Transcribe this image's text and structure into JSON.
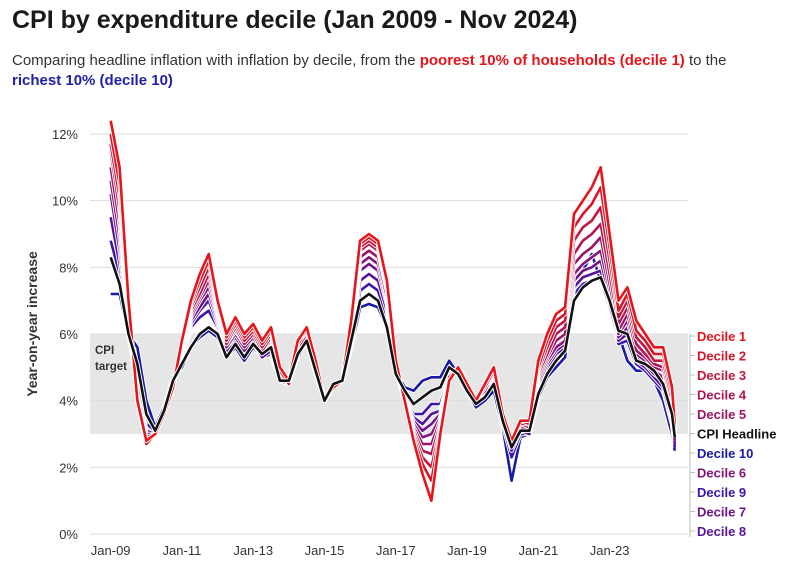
{
  "header": {
    "title": "CPI by expenditure decile (Jan 2009 - Nov 2024)",
    "subtitle_a": "Comparing headline inflation with inflation by decile, from the ",
    "subtitle_poor": "poorest 10% of households (decile 1)",
    "subtitle_b": " to the ",
    "subtitle_rich": "richest 10% (decile 10)"
  },
  "chart_data": {
    "type": "line",
    "ylabel": "Year-on-year increase",
    "ylim": [
      0,
      12.6
    ],
    "y_ticks": [
      0,
      2,
      4,
      6,
      8,
      10,
      12
    ],
    "y_tick_labels": [
      "0%",
      "2%",
      "4%",
      "6%",
      "8%",
      "10%",
      "12%"
    ],
    "x_ticks": [
      2009.0,
      2011.0,
      2013.0,
      2015.0,
      2017.0,
      2019.0,
      2021.0,
      2023.0
    ],
    "x_tick_labels": [
      "Jan-09",
      "Jan-11",
      "Jan-13",
      "Jan-15",
      "Jan-17",
      "Jan-19",
      "Jan-21",
      "Jan-23"
    ],
    "xlim": [
      2008.42,
      2025.2
    ],
    "target_band": {
      "label_line1": "CPI",
      "label_line2": "target",
      "low": 3,
      "high": 6
    },
    "grid": "horizontal",
    "legend": "right",
    "x": [
      2009.0,
      2009.25,
      2009.5,
      2009.75,
      2010.0,
      2010.25,
      2010.5,
      2010.75,
      2011.0,
      2011.25,
      2011.5,
      2011.75,
      2012.0,
      2012.25,
      2012.5,
      2012.75,
      2013.0,
      2013.25,
      2013.5,
      2013.75,
      2014.0,
      2014.25,
      2014.5,
      2014.75,
      2015.0,
      2015.25,
      2015.5,
      2015.75,
      2016.0,
      2016.25,
      2016.5,
      2016.75,
      2017.0,
      2017.25,
      2017.5,
      2017.75,
      2018.0,
      2018.25,
      2018.5,
      2018.75,
      2019.0,
      2019.25,
      2019.5,
      2019.75,
      2020.0,
      2020.25,
      2020.5,
      2020.75,
      2021.0,
      2021.25,
      2021.5,
      2021.75,
      2022.0,
      2022.25,
      2022.5,
      2022.75,
      2023.0,
      2023.25,
      2023.5,
      2023.75,
      2024.0,
      2024.25,
      2024.5,
      2024.75,
      2024.83
    ],
    "series": [
      {
        "name": "Decile 1",
        "color": "#e8141b",
        "values": [
          12.4,
          11.0,
          7.0,
          4.0,
          2.8,
          3.0,
          3.6,
          4.4,
          5.8,
          7.0,
          7.8,
          8.4,
          7.0,
          6.0,
          6.5,
          6.0,
          6.3,
          5.8,
          6.2,
          5.0,
          4.6,
          5.8,
          6.2,
          5.2,
          4.0,
          4.4,
          4.6,
          6.4,
          8.8,
          9.0,
          8.8,
          7.6,
          5.2,
          4.0,
          2.8,
          1.8,
          1.0,
          3.0,
          4.6,
          5.0,
          4.5,
          4.0,
          4.5,
          5.0,
          3.6,
          2.8,
          3.4,
          3.4,
          5.2,
          6.0,
          6.6,
          6.8,
          9.6,
          10.0,
          10.4,
          11.0,
          9.0,
          7.0,
          7.4,
          6.4,
          6.0,
          5.6,
          5.6,
          4.4,
          3.3
        ]
      },
      {
        "name": "Decile 2",
        "color": "#d8152b",
        "values": [
          12.0,
          10.5,
          6.8,
          4.0,
          2.7,
          3.0,
          3.6,
          4.4,
          5.7,
          6.9,
          7.6,
          8.2,
          6.9,
          5.9,
          6.4,
          5.9,
          6.2,
          5.7,
          6.1,
          4.9,
          4.5,
          5.8,
          6.1,
          5.1,
          4.0,
          4.4,
          4.6,
          6.3,
          8.7,
          8.9,
          8.7,
          7.5,
          5.2,
          4.0,
          2.9,
          2.1,
          1.6,
          3.1,
          4.6,
          5.0,
          4.5,
          4.0,
          4.5,
          5.0,
          3.6,
          2.8,
          3.4,
          3.3,
          5.0,
          5.8,
          6.4,
          6.6,
          9.2,
          9.6,
          9.9,
          10.4,
          8.6,
          6.7,
          7.2,
          6.1,
          5.8,
          5.4,
          5.4,
          4.2,
          3.2
        ]
      },
      {
        "name": "Decile 3",
        "color": "#c5163e",
        "values": [
          11.7,
          10.1,
          6.6,
          4.0,
          2.7,
          3.0,
          3.6,
          4.4,
          5.6,
          6.8,
          7.4,
          8.0,
          6.8,
          5.8,
          6.3,
          5.8,
          6.1,
          5.6,
          6.0,
          4.8,
          4.5,
          5.7,
          6.1,
          5.0,
          4.0,
          4.4,
          4.6,
          6.2,
          8.6,
          8.8,
          8.6,
          7.4,
          5.1,
          4.0,
          3.0,
          2.3,
          2.0,
          3.2,
          4.6,
          5.0,
          4.5,
          4.0,
          4.5,
          5.0,
          3.5,
          2.8,
          3.3,
          3.3,
          4.9,
          5.6,
          6.2,
          6.4,
          8.8,
          9.2,
          9.4,
          9.8,
          8.2,
          6.5,
          7.0,
          5.9,
          5.6,
          5.2,
          5.2,
          4.0,
          3.1
        ]
      },
      {
        "name": "Decile 4",
        "color": "#b01652",
        "values": [
          11.5,
          9.7,
          6.4,
          4.1,
          2.7,
          3.0,
          3.6,
          4.4,
          5.5,
          6.7,
          7.2,
          7.8,
          6.7,
          5.7,
          6.2,
          5.7,
          6.0,
          5.5,
          5.9,
          4.8,
          4.5,
          5.6,
          6.0,
          5.0,
          4.0,
          4.4,
          4.6,
          6.1,
          8.5,
          8.7,
          8.5,
          7.3,
          5.0,
          4.0,
          3.1,
          2.5,
          2.4,
          3.3,
          4.7,
          5.0,
          4.5,
          4.0,
          4.4,
          4.9,
          3.5,
          2.7,
          3.3,
          3.2,
          4.8,
          5.4,
          6.0,
          6.2,
          8.4,
          8.8,
          9.0,
          9.3,
          7.8,
          6.3,
          6.8,
          5.7,
          5.4,
          5.1,
          5.0,
          3.9,
          3.0
        ]
      },
      {
        "name": "Decile 5",
        "color": "#9a1565",
        "values": [
          11.0,
          9.3,
          6.3,
          4.1,
          2.8,
          3.0,
          3.6,
          4.5,
          5.5,
          6.6,
          7.1,
          7.6,
          6.6,
          5.7,
          6.1,
          5.7,
          6.0,
          5.5,
          5.8,
          4.8,
          4.5,
          5.6,
          6.0,
          5.0,
          4.0,
          4.4,
          4.6,
          6.0,
          8.3,
          8.5,
          8.3,
          7.1,
          5.0,
          4.0,
          3.2,
          2.7,
          2.7,
          3.4,
          4.7,
          5.0,
          4.5,
          4.0,
          4.4,
          4.9,
          3.5,
          2.7,
          3.2,
          3.2,
          4.7,
          5.3,
          5.8,
          6.0,
          8.1,
          8.4,
          8.6,
          8.9,
          7.5,
          6.1,
          6.6,
          5.5,
          5.3,
          5.0,
          4.9,
          3.8,
          2.9
        ]
      },
      {
        "name": "CPI Headline",
        "color": "#111111",
        "values": [
          8.3,
          7.5,
          6.0,
          5.1,
          3.6,
          3.1,
          3.7,
          4.6,
          5.1,
          5.6,
          6.0,
          6.2,
          6.0,
          5.3,
          5.7,
          5.3,
          5.7,
          5.4,
          5.6,
          4.6,
          4.6,
          5.4,
          5.8,
          4.9,
          4.0,
          4.5,
          4.6,
          5.8,
          7.0,
          7.2,
          7.0,
          6.2,
          4.8,
          4.3,
          3.9,
          4.1,
          4.3,
          4.4,
          5.0,
          4.8,
          4.3,
          3.9,
          4.1,
          4.5,
          3.4,
          2.6,
          3.1,
          3.1,
          4.2,
          4.8,
          5.2,
          5.5,
          7.0,
          7.4,
          7.6,
          7.7,
          7.0,
          6.1,
          6.0,
          5.2,
          5.1,
          4.9,
          4.5,
          3.6,
          2.9
        ]
      },
      {
        "name": "Decile 6",
        "color": "#851578",
        "values": [
          10.6,
          8.9,
          6.2,
          4.2,
          2.9,
          3.0,
          3.6,
          4.5,
          5.4,
          6.5,
          7.0,
          7.4,
          6.5,
          5.6,
          6.0,
          5.6,
          5.9,
          5.4,
          5.7,
          4.7,
          4.5,
          5.5,
          5.9,
          4.9,
          4.0,
          4.4,
          4.6,
          5.9,
          8.1,
          8.3,
          8.1,
          7.0,
          5.0,
          4.0,
          3.3,
          2.9,
          3.0,
          3.5,
          4.7,
          5.0,
          4.5,
          4.0,
          4.4,
          4.8,
          3.4,
          2.7,
          3.2,
          3.1,
          4.6,
          5.2,
          5.6,
          5.8,
          7.8,
          8.1,
          8.3,
          8.5,
          7.3,
          6.0,
          6.4,
          5.4,
          5.2,
          4.9,
          4.7,
          3.6,
          2.8
        ]
      },
      {
        "name": "Decile 7",
        "color": "#6e148a",
        "values": [
          10.2,
          8.5,
          6.1,
          4.4,
          3.0,
          3.0,
          3.6,
          4.5,
          5.3,
          6.4,
          6.8,
          7.2,
          6.4,
          5.6,
          5.9,
          5.5,
          5.8,
          5.4,
          5.6,
          4.7,
          4.5,
          5.5,
          5.9,
          4.9,
          4.0,
          4.4,
          4.6,
          5.8,
          7.9,
          8.1,
          7.9,
          6.9,
          4.9,
          4.0,
          3.4,
          3.1,
          3.3,
          3.6,
          4.7,
          5.0,
          4.5,
          4.0,
          4.3,
          4.8,
          3.4,
          2.6,
          3.1,
          3.1,
          4.5,
          5.1,
          5.5,
          5.7,
          7.6,
          7.9,
          8.0,
          8.2,
          7.1,
          5.9,
          6.2,
          5.3,
          5.1,
          4.8,
          4.6,
          3.5,
          2.7
        ]
      },
      {
        "name": "Decile 8",
        "color": "#56149b",
        "values": [
          9.5,
          8.1,
          6.0,
          4.6,
          3.1,
          3.0,
          3.6,
          4.6,
          5.2,
          6.3,
          6.7,
          7.0,
          6.3,
          5.5,
          5.8,
          5.5,
          5.8,
          5.3,
          5.5,
          4.6,
          4.5,
          5.4,
          5.8,
          4.8,
          4.0,
          4.4,
          4.6,
          5.7,
          7.6,
          7.8,
          7.6,
          6.7,
          4.9,
          4.0,
          3.5,
          3.3,
          3.6,
          3.7,
          4.7,
          5.0,
          4.5,
          4.0,
          4.3,
          4.7,
          3.4,
          2.5,
          3.1,
          3.0,
          4.4,
          5.0,
          5.4,
          5.6,
          7.4,
          7.7,
          7.8,
          7.9,
          6.9,
          5.8,
          6.0,
          5.2,
          5.0,
          4.7,
          4.4,
          3.4,
          2.7
        ]
      },
      {
        "name": "Decile 9",
        "color": "#3d15aa",
        "values": [
          8.8,
          7.8,
          6.0,
          4.9,
          3.3,
          3.1,
          3.7,
          4.6,
          5.2,
          6.2,
          6.5,
          6.7,
          6.2,
          5.5,
          5.7,
          5.4,
          5.7,
          5.3,
          5.4,
          4.6,
          4.5,
          5.4,
          5.8,
          4.8,
          4.0,
          4.4,
          4.6,
          5.6,
          7.3,
          7.5,
          7.3,
          6.5,
          4.9,
          4.0,
          3.6,
          3.6,
          3.9,
          3.9,
          4.7,
          5.0,
          4.5,
          4.0,
          4.3,
          4.6,
          3.3,
          2.3,
          3.0,
          3.0,
          4.3,
          4.9,
          5.3,
          5.5,
          7.2,
          7.5,
          7.6,
          7.7,
          6.8,
          5.7,
          5.8,
          5.1,
          4.9,
          4.6,
          4.3,
          3.3,
          2.6
        ]
      },
      {
        "name": "Decile 10",
        "color": "#1a1aa6",
        "values": [
          7.2,
          7.2,
          6.0,
          5.6,
          4.0,
          3.2,
          3.8,
          4.7,
          5.0,
          5.6,
          5.9,
          6.1,
          5.9,
          5.3,
          5.6,
          5.2,
          5.6,
          5.3,
          5.5,
          4.6,
          4.6,
          5.3,
          5.8,
          4.9,
          4.0,
          4.5,
          4.6,
          5.6,
          6.8,
          6.9,
          6.8,
          6.2,
          4.9,
          4.4,
          4.3,
          4.6,
          4.7,
          4.7,
          5.2,
          4.8,
          4.3,
          3.8,
          4.0,
          4.3,
          3.2,
          1.6,
          2.9,
          3.0,
          4.1,
          4.7,
          5.0,
          5.3,
          7.3,
          7.9,
          8.4,
          7.6,
          6.9,
          6.0,
          5.2,
          4.9,
          4.9,
          4.6,
          4.0,
          3.0,
          2.5
        ]
      }
    ],
    "legend_order": [
      "Decile 1",
      "Decile 2",
      "Decile 3",
      "Decile 4",
      "Decile 5",
      "CPI Headline",
      "Decile 10",
      "Decile 6",
      "Decile 9",
      "Decile 7",
      "Decile 8"
    ]
  }
}
